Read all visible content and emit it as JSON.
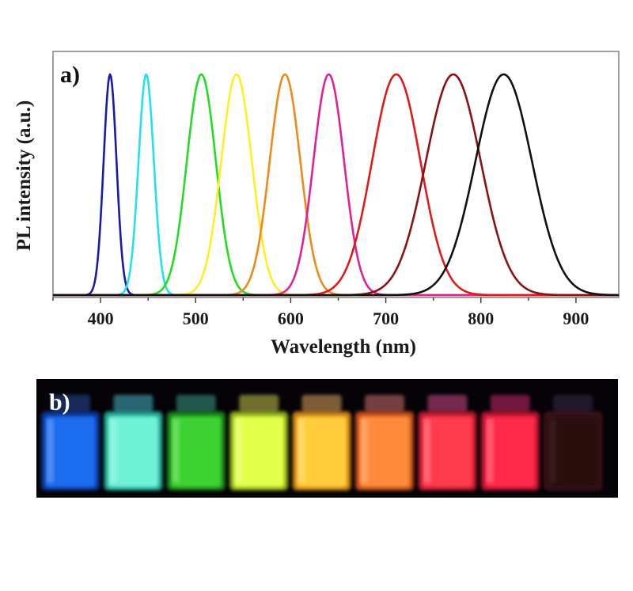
{
  "panel_a_label": "a)",
  "panel_b_label": "b)",
  "chart_data": {
    "type": "line",
    "xlabel": "Wavelength (nm)",
    "ylabel": "PL intensity (a.u.)",
    "xlim": [
      350,
      945
    ],
    "ylim": [
      0,
      1.06
    ],
    "xticks": [
      400,
      500,
      600,
      700,
      800,
      900
    ],
    "yticks_shown": false,
    "grid": false,
    "legend": "none",
    "series": [
      {
        "color": "#1a1aa8",
        "peak_nm": 410,
        "fwhm_nm": 16
      },
      {
        "color": "#22e0f0",
        "peak_nm": 448,
        "fwhm_nm": 19
      },
      {
        "color": "#22dd22",
        "peak_nm": 506,
        "fwhm_nm": 36
      },
      {
        "color": "#ffee22",
        "peak_nm": 543,
        "fwhm_nm": 38
      },
      {
        "color": "#ee8a1a",
        "peak_nm": 594,
        "fwhm_nm": 38
      },
      {
        "color": "#e0209a",
        "peak_nm": 640,
        "fwhm_nm": 38
      },
      {
        "color": "#e01a1a",
        "peak_nm": 711,
        "fwhm_nm": 60
      },
      {
        "color": "#8a1212",
        "peak_nm": 771,
        "fwhm_nm": 68
      },
      {
        "color": "#111111",
        "peak_nm": 824,
        "fwhm_nm": 70
      }
    ]
  },
  "vials": [
    {
      "glow": "#1a6cf0",
      "glow_edge": "#0e3fb0",
      "cap": "#2a4a9a"
    },
    {
      "glow": "#6ff2d6",
      "glow_edge": "#2cc8b0",
      "cap": "#4ab8c8"
    },
    {
      "glow": "#3ed232",
      "glow_edge": "#1e9a1c",
      "cap": "#3a9a8a"
    },
    {
      "glow": "#e2ff4a",
      "glow_edge": "#a8d020",
      "cap": "#c8c850"
    },
    {
      "glow": "#ffcc3a",
      "glow_edge": "#f29a18",
      "cap": "#e0a860"
    },
    {
      "glow": "#ff8a3a",
      "glow_edge": "#e85a1a",
      "cap": "#d07070"
    },
    {
      "glow": "#ff3a4e",
      "glow_edge": "#e01a34",
      "cap": "#d04a8a"
    },
    {
      "glow": "#ff2a4a",
      "glow_edge": "#d81238",
      "cap": "#c82a6a"
    },
    {
      "glow": "#2a0a0e",
      "glow_edge": "#4a121a",
      "cap": "#3a2a4a"
    }
  ]
}
